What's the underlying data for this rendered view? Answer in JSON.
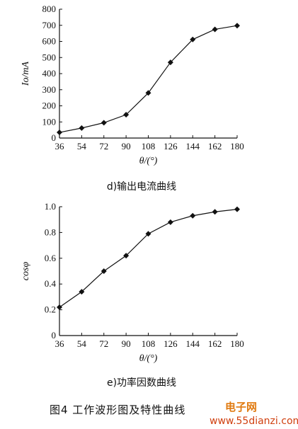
{
  "chart_data": [
    {
      "type": "line",
      "caption": "d)输出电流曲线",
      "x": [
        36,
        54,
        72,
        90,
        108,
        126,
        144,
        162,
        180
      ],
      "y": [
        35,
        62,
        95,
        145,
        280,
        470,
        612,
        675,
        698
      ],
      "xlabel": "θ/(°)",
      "ylabel": "Io/mA",
      "xticks": [
        "36",
        "54",
        "72",
        "90",
        "108",
        "126",
        "144",
        "162",
        "180"
      ],
      "yticks": [
        "0",
        "100",
        "200",
        "300",
        "400",
        "500",
        "600",
        "700",
        "800"
      ],
      "xlim": [
        36,
        180
      ],
      "ylim": [
        0,
        800
      ],
      "marker": "diamond",
      "grid": false
    },
    {
      "type": "line",
      "caption": "e)功率因数曲线",
      "x": [
        36,
        54,
        72,
        90,
        108,
        126,
        144,
        162,
        180
      ],
      "y": [
        0.22,
        0.34,
        0.5,
        0.62,
        0.79,
        0.88,
        0.93,
        0.96,
        0.98
      ],
      "xlabel": "θ/(°)",
      "ylabel": "cosφ",
      "xticks": [
        "36",
        "54",
        "72",
        "90",
        "108",
        "126",
        "144",
        "162",
        "180"
      ],
      "yticks": [
        "0",
        "0.2",
        "0.4",
        "0.6",
        "0.8",
        "1.0"
      ],
      "xlim": [
        36,
        180
      ],
      "ylim": [
        0,
        1.0
      ],
      "marker": "diamond",
      "grid": false
    }
  ],
  "figure_caption": "图4  工作波形图及特性曲线",
  "watermark": {
    "brand": "电子网",
    "url": "www.55dianzi.com"
  }
}
